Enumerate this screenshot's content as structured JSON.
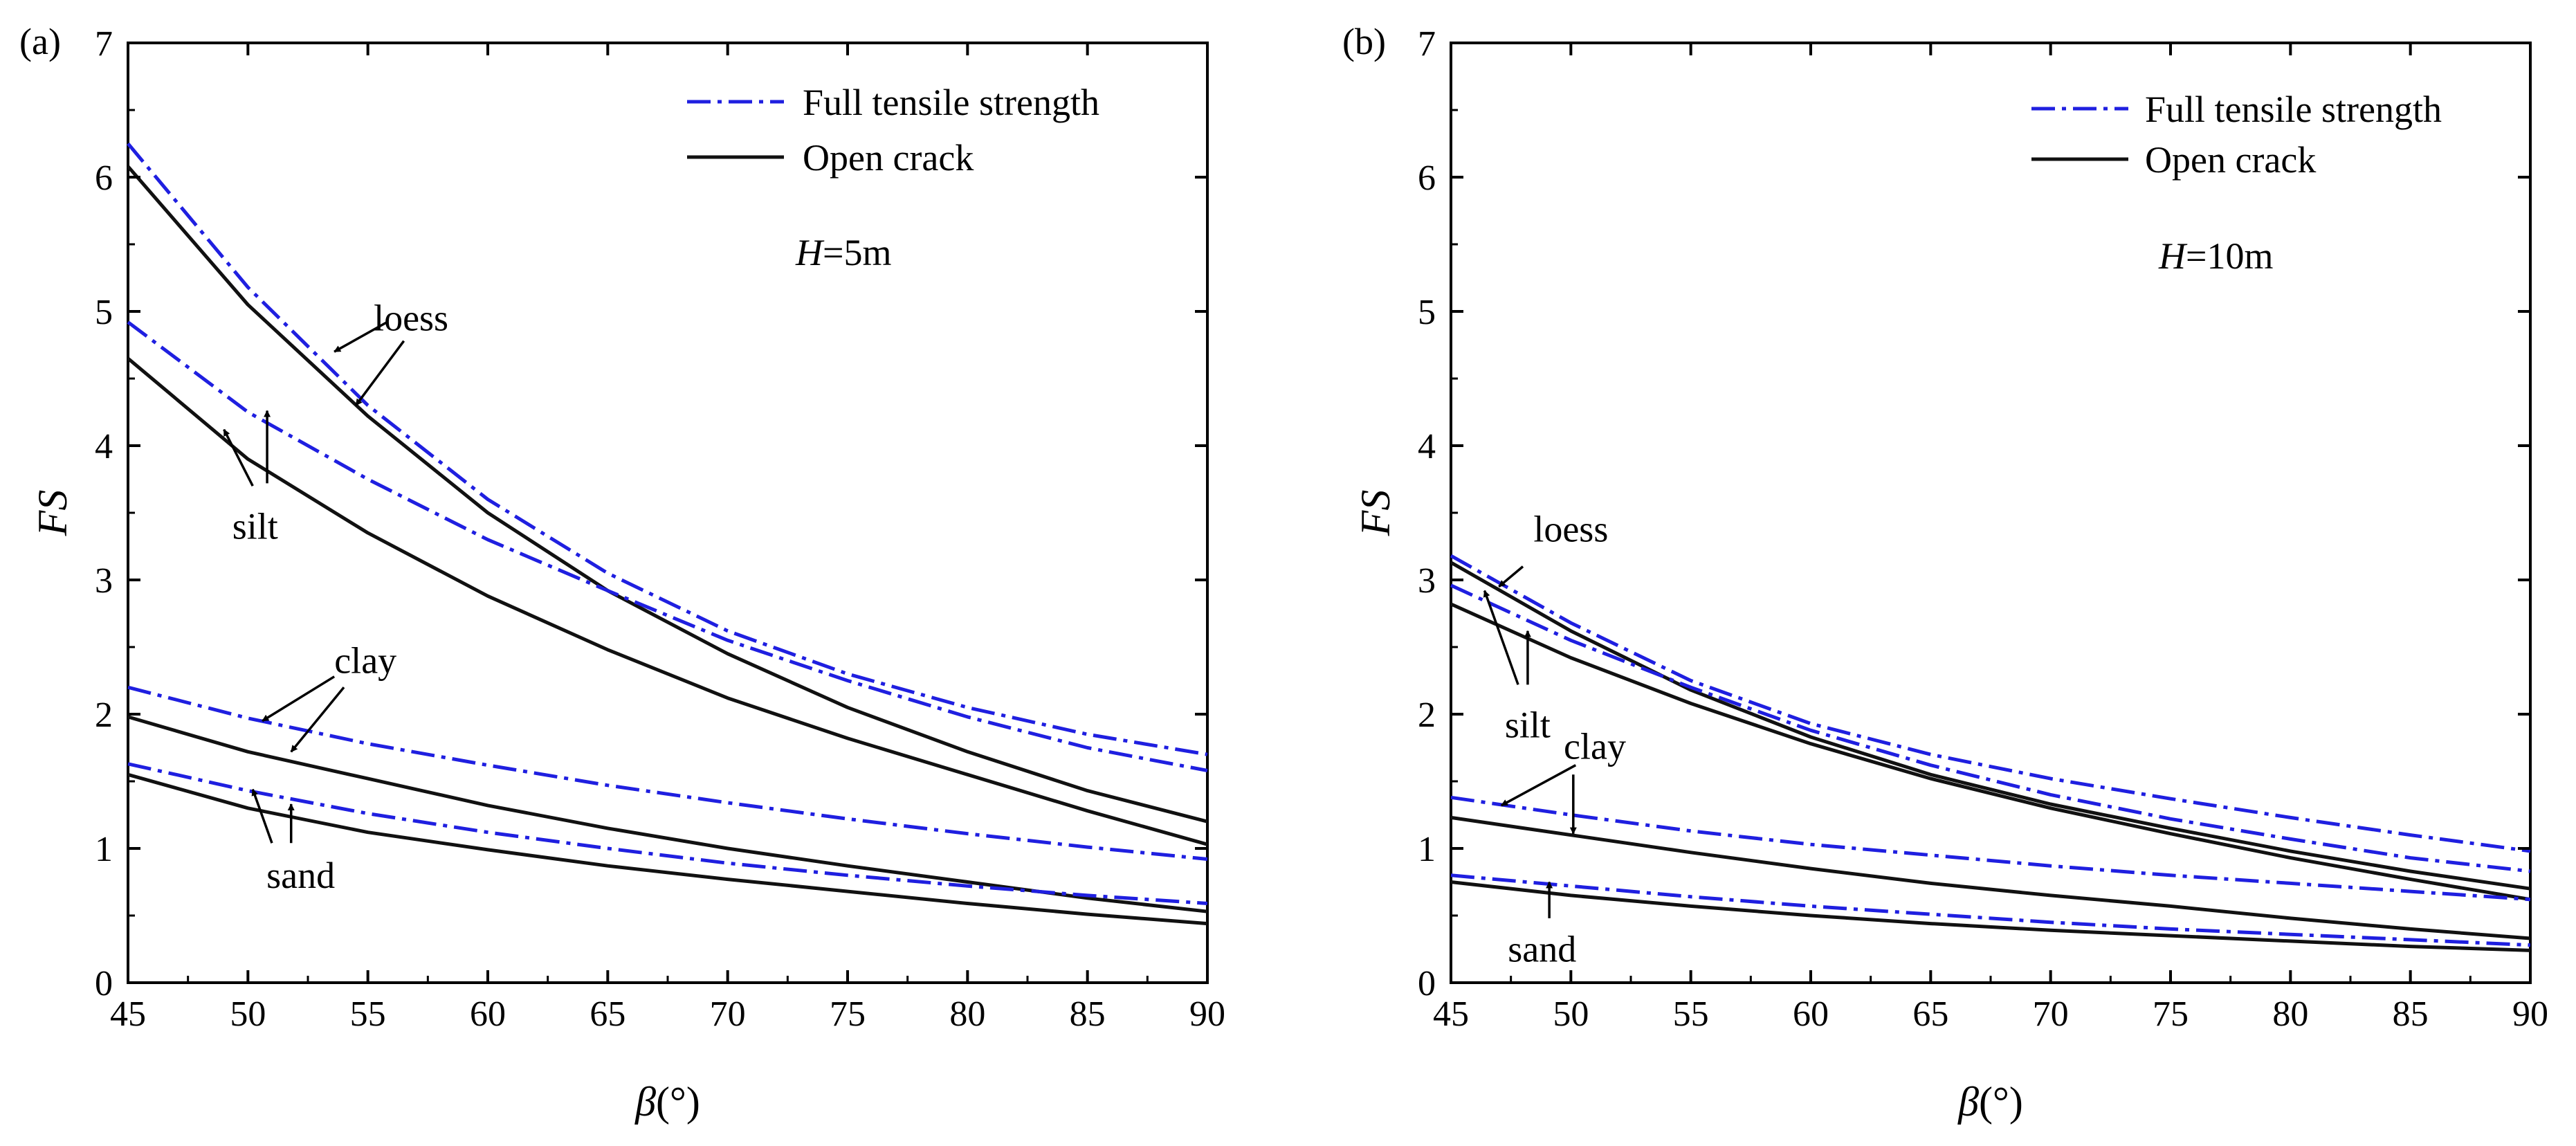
{
  "colors": {
    "full": "#1f1fe0",
    "open": "#111111",
    "axis": "#000000"
  },
  "legend": {
    "full": "Full tensile strength",
    "open": "Open crack"
  },
  "axis_common": {
    "ylabel": "FS",
    "xlabel_symbol": "β",
    "xlabel_unit": "(°)"
  },
  "chart_data": [
    {
      "type": "line",
      "panel_label": "(a)",
      "annotation": {
        "symbol": "H",
        "text": "=5m"
      },
      "xlim": [
        45,
        90
      ],
      "ylim": [
        0,
        7
      ],
      "xticks": [
        45,
        50,
        55,
        60,
        65,
        70,
        75,
        80,
        85,
        90
      ],
      "yticks": [
        0,
        1,
        2,
        3,
        4,
        5,
        6,
        7
      ],
      "x": [
        45,
        50,
        55,
        60,
        65,
        70,
        75,
        80,
        85,
        90
      ],
      "series": [
        {
          "name": "loess",
          "condition": "full",
          "values": [
            6.25,
            5.18,
            4.3,
            3.6,
            3.05,
            2.62,
            2.3,
            2.05,
            1.85,
            1.7
          ]
        },
        {
          "name": "loess",
          "condition": "open",
          "values": [
            6.08,
            5.05,
            4.22,
            3.5,
            2.92,
            2.45,
            2.05,
            1.72,
            1.43,
            1.2
          ]
        },
        {
          "name": "silt",
          "condition": "full",
          "values": [
            4.92,
            4.25,
            3.75,
            3.3,
            2.92,
            2.55,
            2.25,
            1.98,
            1.75,
            1.58
          ]
        },
        {
          "name": "silt",
          "condition": "open",
          "values": [
            4.65,
            3.9,
            3.35,
            2.88,
            2.48,
            2.12,
            1.82,
            1.55,
            1.28,
            1.03
          ]
        },
        {
          "name": "clay",
          "condition": "full",
          "values": [
            2.2,
            1.97,
            1.78,
            1.62,
            1.47,
            1.34,
            1.22,
            1.11,
            1.01,
            0.92
          ]
        },
        {
          "name": "clay",
          "condition": "open",
          "values": [
            1.98,
            1.72,
            1.52,
            1.32,
            1.15,
            1.0,
            0.87,
            0.75,
            0.63,
            0.53
          ]
        },
        {
          "name": "sand",
          "condition": "full",
          "values": [
            1.63,
            1.43,
            1.26,
            1.12,
            1.0,
            0.89,
            0.8,
            0.72,
            0.65,
            0.59
          ]
        },
        {
          "name": "sand",
          "condition": "open",
          "values": [
            1.55,
            1.3,
            1.12,
            0.99,
            0.87,
            0.77,
            0.68,
            0.59,
            0.51,
            0.44
          ]
        }
      ],
      "labels": [
        {
          "text": "loess",
          "x": 56.8,
          "y": 4.95,
          "arrows": [
            {
              "from": [
                55.8,
                4.92
              ],
              "to": [
                53.6,
                4.7
              ]
            },
            {
              "from": [
                56.5,
                4.78
              ],
              "to": [
                54.5,
                4.3
              ]
            }
          ]
        },
        {
          "text": "silt",
          "x": 50.3,
          "y": 3.4,
          "arrows": [
            {
              "from": [
                50.2,
                3.7
              ],
              "to": [
                49.0,
                4.12
              ]
            },
            {
              "from": [
                50.8,
                3.72
              ],
              "to": [
                50.8,
                4.26
              ]
            }
          ]
        },
        {
          "text": "clay",
          "x": 54.9,
          "y": 2.4,
          "arrows": [
            {
              "from": [
                53.6,
                2.28
              ],
              "to": [
                50.6,
                1.95
              ]
            },
            {
              "from": [
                54.0,
                2.2
              ],
              "to": [
                51.8,
                1.72
              ]
            }
          ]
        },
        {
          "text": "sand",
          "x": 52.2,
          "y": 0.8,
          "arrows": [
            {
              "from": [
                51.0,
                1.04
              ],
              "to": [
                50.2,
                1.44
              ]
            },
            {
              "from": [
                51.8,
                1.04
              ],
              "to": [
                51.8,
                1.33
              ]
            }
          ]
        }
      ]
    },
    {
      "type": "line",
      "panel_label": "(b)",
      "annotation": {
        "symbol": "H",
        "text": "=10m"
      },
      "xlim": [
        45,
        90
      ],
      "ylim": [
        0,
        7
      ],
      "xticks": [
        45,
        50,
        55,
        60,
        65,
        70,
        75,
        80,
        85,
        90
      ],
      "yticks": [
        0,
        1,
        2,
        3,
        4,
        5,
        6,
        7
      ],
      "x": [
        45,
        50,
        55,
        60,
        65,
        70,
        75,
        80,
        85,
        90
      ],
      "series": [
        {
          "name": "loess",
          "condition": "full",
          "values": [
            3.18,
            2.68,
            2.25,
            1.93,
            1.7,
            1.52,
            1.37,
            1.23,
            1.1,
            0.98
          ]
        },
        {
          "name": "loess",
          "condition": "open",
          "values": [
            3.13,
            2.62,
            2.18,
            1.83,
            1.55,
            1.33,
            1.15,
            0.98,
            0.83,
            0.7
          ]
        },
        {
          "name": "silt",
          "condition": "full",
          "values": [
            2.96,
            2.55,
            2.2,
            1.88,
            1.62,
            1.4,
            1.22,
            1.07,
            0.93,
            0.83
          ]
        },
        {
          "name": "silt",
          "condition": "open",
          "values": [
            2.82,
            2.42,
            2.08,
            1.78,
            1.52,
            1.3,
            1.11,
            0.93,
            0.77,
            0.62
          ]
        },
        {
          "name": "clay",
          "condition": "full",
          "values": [
            1.38,
            1.25,
            1.13,
            1.03,
            0.95,
            0.87,
            0.8,
            0.74,
            0.68,
            0.62
          ]
        },
        {
          "name": "clay",
          "condition": "open",
          "values": [
            1.23,
            1.1,
            0.97,
            0.85,
            0.74,
            0.65,
            0.57,
            0.48,
            0.4,
            0.33
          ]
        },
        {
          "name": "sand",
          "condition": "full",
          "values": [
            0.8,
            0.72,
            0.64,
            0.57,
            0.51,
            0.45,
            0.4,
            0.36,
            0.32,
            0.28
          ]
        },
        {
          "name": "sand",
          "condition": "open",
          "values": [
            0.75,
            0.65,
            0.57,
            0.5,
            0.44,
            0.39,
            0.35,
            0.31,
            0.27,
            0.24
          ]
        }
      ],
      "labels": [
        {
          "text": "loess",
          "x": 50.0,
          "y": 3.38,
          "arrows": [
            {
              "from": [
                48.0,
                3.1
              ],
              "to": [
                47.0,
                2.95
              ]
            }
          ]
        },
        {
          "text": "silt",
          "x": 48.2,
          "y": 1.92,
          "arrows": [
            {
              "from": [
                47.8,
                2.22
              ],
              "to": [
                46.4,
                2.92
              ]
            },
            {
              "from": [
                48.2,
                2.22
              ],
              "to": [
                48.2,
                2.62
              ]
            }
          ]
        },
        {
          "text": "clay",
          "x": 51.0,
          "y": 1.76,
          "arrows": [
            {
              "from": [
                50.2,
                1.62
              ],
              "to": [
                47.1,
                1.32
              ]
            },
            {
              "from": [
                50.1,
                1.55
              ],
              "to": [
                50.1,
                1.11
              ]
            }
          ]
        },
        {
          "text": "sand",
          "x": 48.8,
          "y": 0.25,
          "arrows": [
            {
              "from": [
                49.1,
                0.48
              ],
              "to": [
                49.1,
                0.75
              ]
            }
          ]
        }
      ]
    }
  ]
}
